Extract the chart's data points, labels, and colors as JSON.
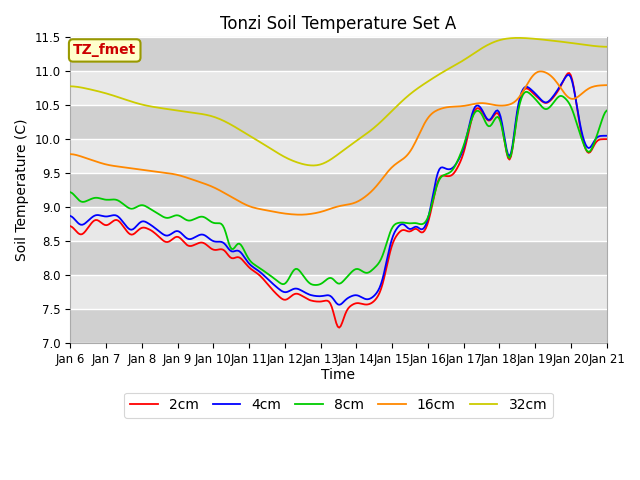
{
  "title": "Tonzi Soil Temperature Set A",
  "xlabel": "Time",
  "ylabel": "Soil Temperature (C)",
  "ylim": [
    7.0,
    11.5
  ],
  "yticks": [
    7.0,
    7.5,
    8.0,
    8.5,
    9.0,
    9.5,
    10.0,
    10.5,
    11.0,
    11.5
  ],
  "xtick_labels": [
    "Jan 6",
    "Jan 7",
    "Jan 8",
    "Jan 9",
    "Jan 10",
    "Jan 11",
    "Jan 12",
    "Jan 13",
    "Jan 14",
    "Jan 15",
    "Jan 16",
    "Jan 17",
    "Jan 18",
    "Jan 19",
    "Jan 20",
    "Jan 21"
  ],
  "legend_entries": [
    "2cm",
    "4cm",
    "8cm",
    "16cm",
    "32cm"
  ],
  "line_colors": [
    "#ff0000",
    "#0000ff",
    "#00cc00",
    "#ff8800",
    "#cccc00"
  ],
  "annotation_text": "TZ_fmet",
  "annotation_color": "#cc0000",
  "annotation_bg": "#ffffcc",
  "annotation_border": "#999900",
  "plot_bg_color": "#e8e8e8",
  "stripe_color": "#d0d0d0",
  "title_fontsize": 12,
  "axis_label_fontsize": 10,
  "tick_fontsize": 8.5,
  "legend_fontsize": 10,
  "n_points": 360
}
